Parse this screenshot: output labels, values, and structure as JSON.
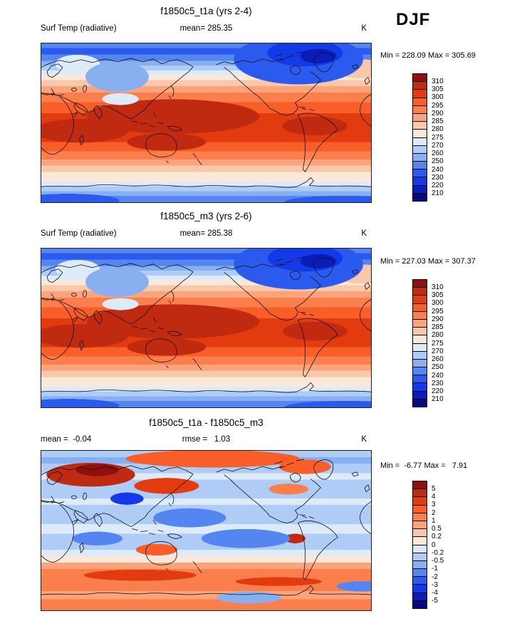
{
  "season_label": "DJF",
  "palette": [
    "#8E1010",
    "#C02A10",
    "#E23B10",
    "#FA5E28",
    "#FB7E4D",
    "#FBA37B",
    "#F9C7A9",
    "#FCE8D8",
    "#DDEAF8",
    "#AECCF5",
    "#88AFF0",
    "#5585F0",
    "#2B5BEE",
    "#1439E8",
    "#0B1DB8",
    "#05087E"
  ],
  "panels": [
    {
      "title": "f1850c5_t1a (yrs 2-4)",
      "left_label": "Surf Temp (radiative)",
      "center_label": "mean= 285.35",
      "units": "K",
      "minmax": "Min = 228.09 Max = 305.69",
      "ticks": [
        "310",
        "305",
        "300",
        "295",
        "290",
        "285",
        "280",
        "275",
        "270",
        "260",
        "250",
        "240",
        "230",
        "220",
        "210"
      ]
    },
    {
      "title": "f1850c5_m3 (yrs 2-6)",
      "left_label": "Surf Temp (radiative)",
      "center_label": "mean= 285.38",
      "units": "K",
      "minmax": "Min = 227.03 Max = 307.37",
      "ticks": [
        "310",
        "305",
        "300",
        "295",
        "290",
        "285",
        "280",
        "275",
        "270",
        "260",
        "250",
        "240",
        "230",
        "220",
        "210"
      ]
    },
    {
      "title": "f1850c5_t1a - f1850c5_m3",
      "left_label": "mean =  -0.04",
      "center_label": "rmse =   1.03",
      "units": "K",
      "minmax": "Min =  -6.77 Max =   7.91",
      "ticks": [
        "5",
        "4",
        "3",
        "2",
        "1",
        "0.5",
        "0.2",
        "0",
        "-0.2",
        "-0.5",
        "-1",
        "-2",
        "-3",
        "-4",
        "-5"
      ]
    }
  ],
  "chart_data": [
    {
      "type": "heatmap",
      "title": "f1850c5_t1a (yrs 2-4)",
      "variable": "Surf Temp (radiative)",
      "season": "DJF",
      "units": "K",
      "mean": 285.35,
      "min": 228.09,
      "max": 305.69,
      "levels": [
        210,
        220,
        230,
        240,
        250,
        260,
        270,
        275,
        280,
        285,
        290,
        295,
        300,
        305,
        310
      ],
      "projection": "global lat-lon map, Pacific-centered",
      "legend_position": "right",
      "colormap": "blue-white-red diverging, 16 classes"
    },
    {
      "type": "heatmap",
      "title": "f1850c5_m3 (yrs 2-6)",
      "variable": "Surf Temp (radiative)",
      "season": "DJF",
      "units": "K",
      "mean": 285.38,
      "min": 227.03,
      "max": 307.37,
      "levels": [
        210,
        220,
        230,
        240,
        250,
        260,
        270,
        275,
        280,
        285,
        290,
        295,
        300,
        305,
        310
      ],
      "projection": "global lat-lon map, Pacific-centered",
      "legend_position": "right",
      "colormap": "blue-white-red diverging, 16 classes"
    },
    {
      "type": "heatmap",
      "title": "f1850c5_t1a - f1850c5_m3",
      "variable": "Surf Temp (radiative) difference",
      "season": "DJF",
      "units": "K",
      "mean": -0.04,
      "rmse": 1.03,
      "min": -6.77,
      "max": 7.91,
      "levels": [
        -5,
        -4,
        -3,
        -2,
        -1,
        -0.5,
        -0.2,
        0,
        0.2,
        0.5,
        1,
        2,
        3,
        4,
        5
      ],
      "projection": "global lat-lon map, Pacific-centered",
      "legend_position": "right",
      "colormap": "blue-white-red diverging, 16 classes"
    }
  ]
}
